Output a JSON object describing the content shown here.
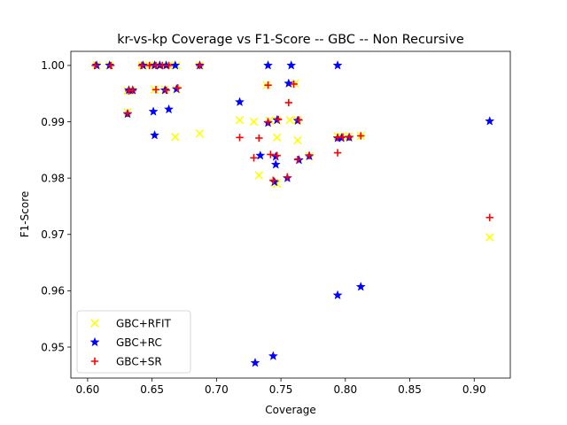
{
  "chart_data": {
    "type": "scatter",
    "title": "kr-vs-kp Coverage vs F1-Score -- GBC -- Non Recursive",
    "xlabel": "Coverage",
    "ylabel": "F1-Score",
    "xlim": [
      0.587,
      0.928
    ],
    "ylim": [
      0.9445,
      1.0025
    ],
    "xticks": [
      0.6,
      0.65,
      0.7,
      0.75,
      0.8,
      0.85,
      0.9
    ],
    "xtick_labels": [
      "0.60",
      "0.65",
      "0.70",
      "0.75",
      "0.80",
      "0.85",
      "0.90"
    ],
    "yticks": [
      0.95,
      0.96,
      0.97,
      0.98,
      0.99,
      1.0
    ],
    "ytick_labels": [
      "0.95",
      "0.96",
      "0.97",
      "0.98",
      "0.99",
      "1.00"
    ],
    "legend_position": "lower-left",
    "series": [
      {
        "name": "GBC+RFIT",
        "marker": "x",
        "color": "#ffff00",
        "points": [
          [
            0.607,
            1.0
          ],
          [
            0.617,
            1.0
          ],
          [
            0.642,
            1.0
          ],
          [
            0.648,
            1.0
          ],
          [
            0.653,
            1.0
          ],
          [
            0.658,
            1.0
          ],
          [
            0.663,
            1.0
          ],
          [
            0.669,
            1.0
          ],
          [
            0.687,
            1.0
          ],
          [
            0.631,
            0.9955
          ],
          [
            0.634,
            0.9955
          ],
          [
            0.652,
            0.9957
          ],
          [
            0.66,
            0.9957
          ],
          [
            0.669,
            0.9957
          ],
          [
            0.631,
            0.9917
          ],
          [
            0.668,
            0.9873
          ],
          [
            0.687,
            0.9879
          ],
          [
            0.718,
            0.9903
          ],
          [
            0.729,
            0.99
          ],
          [
            0.739,
            0.9965
          ],
          [
            0.741,
            0.9902
          ],
          [
            0.747,
            0.9902
          ],
          [
            0.757,
            0.9903
          ],
          [
            0.761,
            0.9968
          ],
          [
            0.763,
            0.9903
          ],
          [
            0.747,
            0.9872
          ],
          [
            0.763,
            0.9867
          ],
          [
            0.733,
            0.9805
          ],
          [
            0.745,
            0.9792
          ],
          [
            0.747,
            0.979
          ],
          [
            0.772,
            0.9839
          ],
          [
            0.794,
            0.9874
          ],
          [
            0.797,
            0.9873
          ],
          [
            0.803,
            0.9874
          ],
          [
            0.812,
            0.9875
          ],
          [
            0.912,
            0.9695
          ]
        ]
      },
      {
        "name": "GBC+RC",
        "marker": "star",
        "color": "#0000ff",
        "points": [
          [
            0.607,
            1.0
          ],
          [
            0.617,
            1.0
          ],
          [
            0.643,
            1.0
          ],
          [
            0.652,
            1.0
          ],
          [
            0.656,
            1.0
          ],
          [
            0.661,
            1.0
          ],
          [
            0.668,
            1.0
          ],
          [
            0.687,
            1.0
          ],
          [
            0.74,
            1.0
          ],
          [
            0.758,
            1.0
          ],
          [
            0.794,
            1.0
          ],
          [
            0.632,
            0.9956
          ],
          [
            0.635,
            0.9956
          ],
          [
            0.66,
            0.9956
          ],
          [
            0.669,
            0.9958
          ],
          [
            0.756,
            0.9968
          ],
          [
            0.718,
            0.9935
          ],
          [
            0.651,
            0.9918
          ],
          [
            0.663,
            0.9922
          ],
          [
            0.631,
            0.9914
          ],
          [
            0.74,
            0.9898
          ],
          [
            0.747,
            0.9903
          ],
          [
            0.763,
            0.9902
          ],
          [
            0.912,
            0.9901
          ],
          [
            0.652,
            0.9876
          ],
          [
            0.794,
            0.9871
          ],
          [
            0.797,
            0.9871
          ],
          [
            0.803,
            0.9872
          ],
          [
            0.734,
            0.984
          ],
          [
            0.746,
            0.9838
          ],
          [
            0.746,
            0.9824
          ],
          [
            0.764,
            0.9832
          ],
          [
            0.772,
            0.9839
          ],
          [
            0.755,
            0.98
          ],
          [
            0.745,
            0.9793
          ],
          [
            0.794,
            0.9592
          ],
          [
            0.812,
            0.9607
          ],
          [
            0.73,
            0.9472
          ],
          [
            0.744,
            0.9484
          ]
        ]
      },
      {
        "name": "GBC+SR",
        "marker": "plus",
        "color": "#ff0000",
        "points": [
          [
            0.606,
            1.0
          ],
          [
            0.618,
            1.0
          ],
          [
            0.642,
            1.0
          ],
          [
            0.648,
            1.0
          ],
          [
            0.653,
            1.0
          ],
          [
            0.658,
            1.0
          ],
          [
            0.663,
            1.0
          ],
          [
            0.687,
            1.0
          ],
          [
            0.632,
            0.9955
          ],
          [
            0.635,
            0.9956
          ],
          [
            0.653,
            0.9957
          ],
          [
            0.661,
            0.9956
          ],
          [
            0.67,
            0.996
          ],
          [
            0.74,
            0.9965
          ],
          [
            0.76,
            0.9967
          ],
          [
            0.756,
            0.9934
          ],
          [
            0.631,
            0.9915
          ],
          [
            0.74,
            0.99
          ],
          [
            0.748,
            0.9904
          ],
          [
            0.764,
            0.9903
          ],
          [
            0.718,
            0.9872
          ],
          [
            0.733,
            0.9871
          ],
          [
            0.794,
            0.9872
          ],
          [
            0.798,
            0.9873
          ],
          [
            0.803,
            0.9873
          ],
          [
            0.812,
            0.9875
          ],
          [
            0.729,
            0.9836
          ],
          [
            0.742,
            0.9842
          ],
          [
            0.747,
            0.984
          ],
          [
            0.763,
            0.9833
          ],
          [
            0.772,
            0.984
          ],
          [
            0.794,
            0.9845
          ],
          [
            0.744,
            0.9796
          ],
          [
            0.755,
            0.9802
          ],
          [
            0.912,
            0.973
          ]
        ]
      }
    ]
  }
}
